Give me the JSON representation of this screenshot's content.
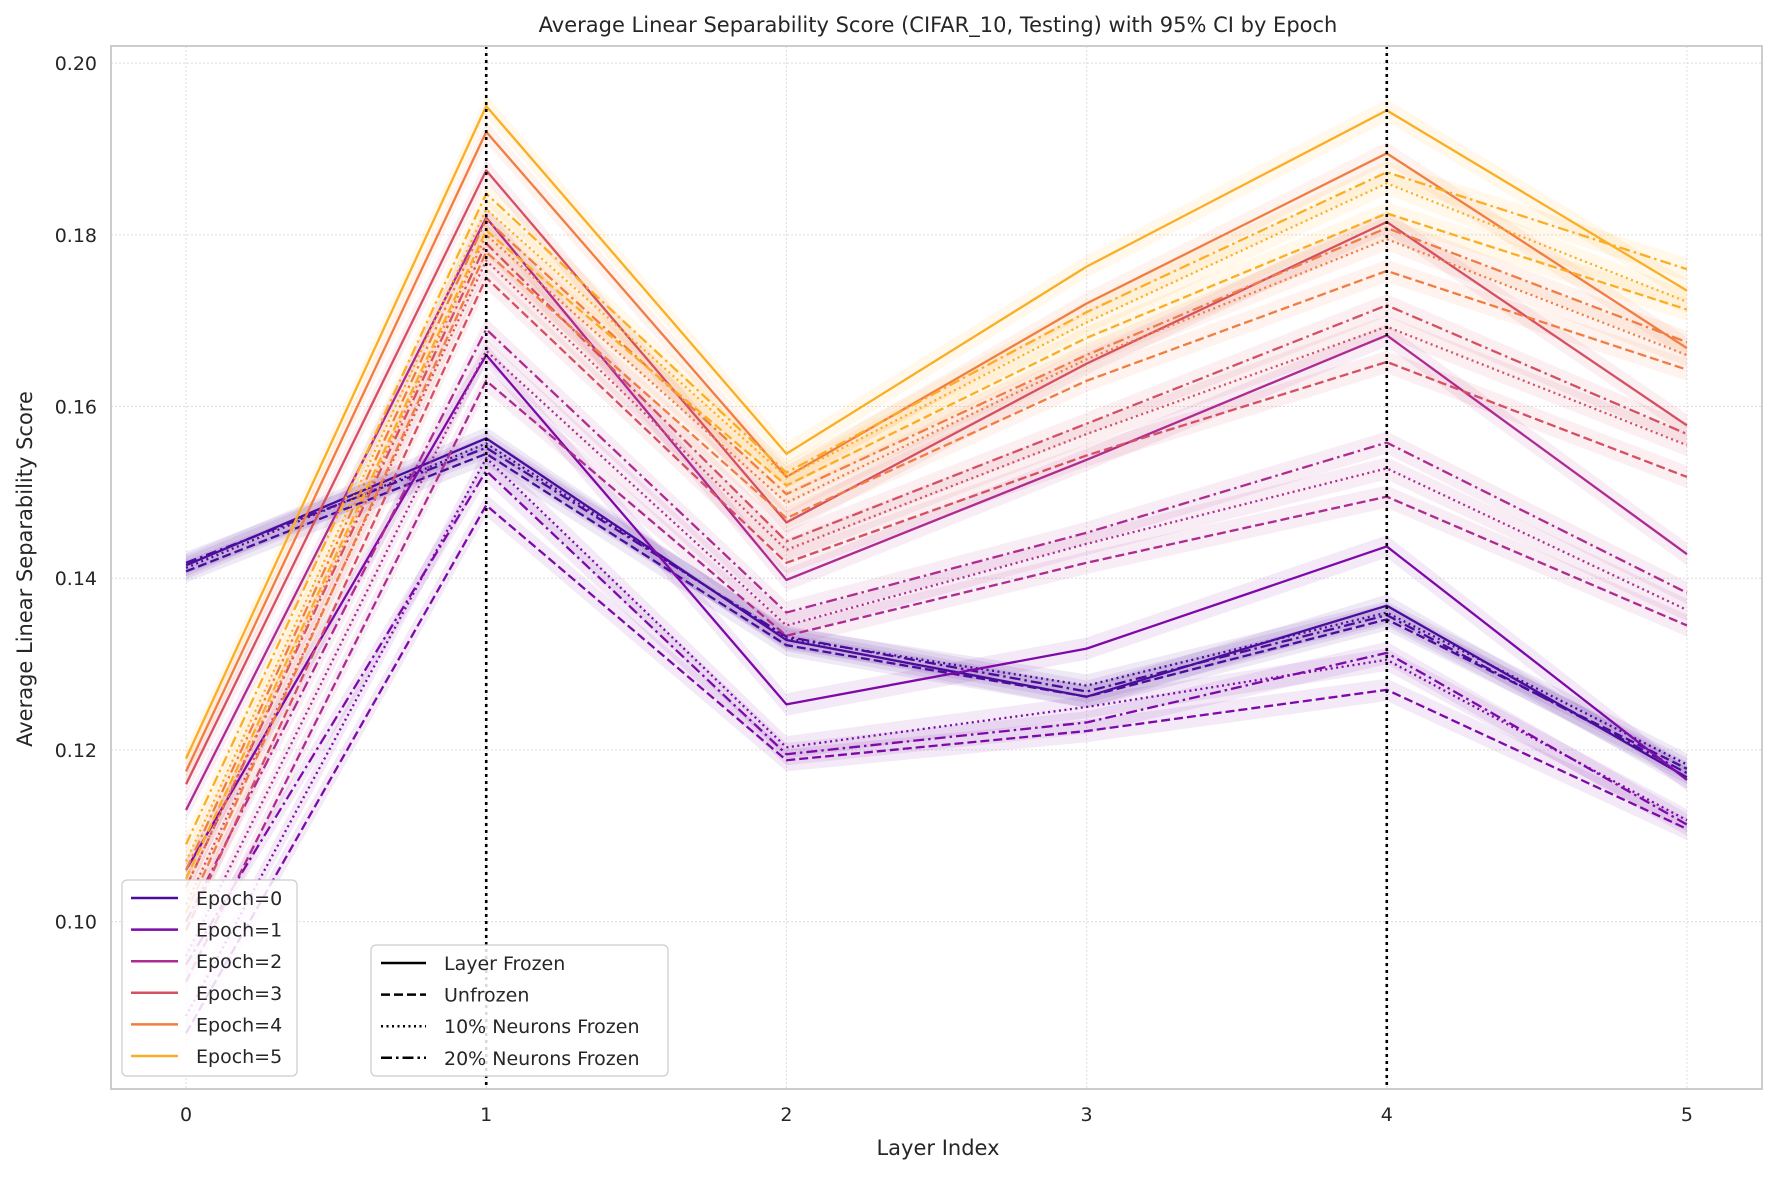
{
  "chart_data": {
    "type": "line",
    "title": "Average Linear Separability Score (CIFAR_10, Testing) with 95% CI by Epoch",
    "xlabel": "Layer Index",
    "ylabel": "Average Linear Separability Score",
    "x": [
      0,
      1,
      2,
      3,
      4,
      5
    ],
    "x_ticks": [
      "0",
      "1",
      "2",
      "3",
      "4",
      "5"
    ],
    "y_ticks": [
      "0.10",
      "0.12",
      "0.14",
      "0.16",
      "0.18",
      "0.20"
    ],
    "xlim": [
      -0.25,
      5.25
    ],
    "ylim": [
      0.0805,
      0.202
    ],
    "grid": true,
    "vlines": [
      1,
      4
    ],
    "ci_halfwidth": 0.0013,
    "epochs": [
      {
        "label": "Epoch=0",
        "color": "#4b0c9b"
      },
      {
        "label": "Epoch=1",
        "color": "#7e09a8"
      },
      {
        "label": "Epoch=2",
        "color": "#ae2b91"
      },
      {
        "label": "Epoch=3",
        "color": "#d55062"
      },
      {
        "label": "Epoch=4",
        "color": "#f07d42"
      },
      {
        "label": "Epoch=5",
        "color": "#fbae24"
      }
    ],
    "styles": [
      {
        "label": "Layer Frozen",
        "dash": "solid"
      },
      {
        "label": "Unfrozen",
        "dash": "dashed"
      },
      {
        "label": "10% Neurons Frozen",
        "dash": "dotted"
      },
      {
        "label": "20% Neurons Frozen",
        "dash": "dashdot"
      }
    ],
    "legend_epoch_position": "lower-left",
    "legend_style_position": "lower-center-left",
    "series": [
      {
        "epoch": 0,
        "style": 0,
        "values": [
          0.1415,
          0.1563,
          0.1328,
          0.1262,
          0.1368,
          0.1168
        ]
      },
      {
        "epoch": 0,
        "style": 1,
        "values": [
          0.1408,
          0.1545,
          0.1322,
          0.1262,
          0.1352,
          0.1178
        ]
      },
      {
        "epoch": 0,
        "style": 2,
        "values": [
          0.1412,
          0.1557,
          0.133,
          0.1275,
          0.136,
          0.1183
        ]
      },
      {
        "epoch": 0,
        "style": 3,
        "values": [
          0.1418,
          0.1552,
          0.1332,
          0.1268,
          0.1357,
          0.1173
        ]
      },
      {
        "epoch": 1,
        "style": 0,
        "values": [
          0.106,
          0.166,
          0.1253,
          0.1318,
          0.1437,
          0.1165
        ]
      },
      {
        "epoch": 1,
        "style": 1,
        "values": [
          0.087,
          0.1485,
          0.1188,
          0.1222,
          0.127,
          0.1108
        ]
      },
      {
        "epoch": 1,
        "style": 2,
        "values": [
          0.089,
          0.154,
          0.1203,
          0.125,
          0.1305,
          0.1118
        ]
      },
      {
        "epoch": 1,
        "style": 3,
        "values": [
          0.095,
          0.1525,
          0.1195,
          0.1232,
          0.1313,
          0.1113
        ]
      },
      {
        "epoch": 2,
        "style": 0,
        "values": [
          0.113,
          0.182,
          0.1398,
          0.1538,
          0.1683,
          0.1428
        ]
      },
      {
        "epoch": 2,
        "style": 1,
        "values": [
          0.093,
          0.163,
          0.1333,
          0.1418,
          0.1495,
          0.1345
        ]
      },
      {
        "epoch": 2,
        "style": 2,
        "values": [
          0.096,
          0.1665,
          0.1345,
          0.144,
          0.1528,
          0.1363
        ]
      },
      {
        "epoch": 2,
        "style": 3,
        "values": [
          0.1,
          0.169,
          0.136,
          0.1453,
          0.1558,
          0.1383
        ]
      },
      {
        "epoch": 3,
        "style": 0,
        "values": [
          0.116,
          0.1875,
          0.1465,
          0.165,
          0.1815,
          0.1578
        ]
      },
      {
        "epoch": 3,
        "style": 1,
        "values": [
          0.099,
          0.175,
          0.1418,
          0.1543,
          0.1652,
          0.1518
        ]
      },
      {
        "epoch": 3,
        "style": 2,
        "values": [
          0.102,
          0.177,
          0.1433,
          0.1568,
          0.1693,
          0.1555
        ]
      },
      {
        "epoch": 3,
        "style": 3,
        "values": [
          0.104,
          0.179,
          0.1443,
          0.158,
          0.1718,
          0.1568
        ]
      },
      {
        "epoch": 4,
        "style": 0,
        "values": [
          0.1175,
          0.192,
          0.1518,
          0.172,
          0.1895,
          0.1668
        ]
      },
      {
        "epoch": 4,
        "style": 1,
        "values": [
          0.101,
          0.178,
          0.147,
          0.163,
          0.1758,
          0.1643
        ]
      },
      {
        "epoch": 4,
        "style": 2,
        "values": [
          0.104,
          0.18,
          0.1488,
          0.1655,
          0.1795,
          0.166
        ]
      },
      {
        "epoch": 4,
        "style": 3,
        "values": [
          0.106,
          0.1818,
          0.1498,
          0.166,
          0.1808,
          0.1675
        ]
      },
      {
        "epoch": 5,
        "style": 0,
        "values": [
          0.119,
          0.195,
          0.1545,
          0.1763,
          0.1945,
          0.1735
        ]
      },
      {
        "epoch": 5,
        "style": 1,
        "values": [
          0.105,
          0.1805,
          0.1508,
          0.168,
          0.1825,
          0.1713
        ]
      },
      {
        "epoch": 5,
        "style": 2,
        "values": [
          0.107,
          0.183,
          0.1518,
          0.1698,
          0.186,
          0.1722
        ]
      },
      {
        "epoch": 5,
        "style": 3,
        "values": [
          0.109,
          0.1848,
          0.1523,
          0.171,
          0.1873,
          0.176
        ]
      }
    ]
  }
}
